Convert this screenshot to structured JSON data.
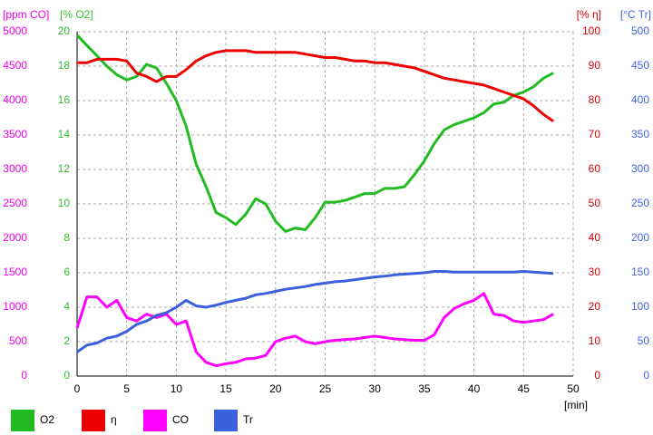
{
  "chart_data": {
    "type": "line",
    "xlabel": "[min]",
    "ylabel": "[% O2]",
    "y2label": "[% η]",
    "y3label": "[ppm CO]",
    "y4label": "[°C Tr]",
    "x": [
      0,
      1,
      2,
      3,
      4,
      5,
      6,
      7,
      8,
      9,
      10,
      11,
      12,
      13,
      14,
      15,
      16,
      17,
      18,
      19,
      20,
      21,
      22,
      23,
      24,
      25,
      26,
      27,
      28,
      29,
      30,
      31,
      32,
      33,
      34,
      35,
      36,
      37,
      38,
      39,
      40,
      41,
      42,
      43,
      44,
      45,
      46,
      47,
      48
    ],
    "xlim": [
      0,
      50
    ],
    "xticks": [
      0,
      5,
      10,
      15,
      20,
      25,
      30,
      35,
      40,
      45,
      50
    ],
    "ylim": [
      0,
      20
    ],
    "yticks": [
      0,
      2,
      4,
      6,
      8,
      10,
      12,
      14,
      16,
      18,
      20
    ],
    "ycolor": "#33bb33",
    "y2lim": [
      0,
      100
    ],
    "y2ticks": [
      0,
      10,
      20,
      30,
      40,
      50,
      60,
      70,
      80,
      90,
      100
    ],
    "y2color": "#dd0000",
    "y3lim": [
      0,
      5000
    ],
    "y3ticks": [
      0,
      500,
      1000,
      1500,
      2000,
      2500,
      3000,
      3500,
      4000,
      4500,
      5000
    ],
    "y3color": "#ee00ee",
    "y4lim": [
      0,
      500
    ],
    "y4ticks": [
      0,
      50,
      100,
      150,
      200,
      250,
      300,
      350,
      400,
      450,
      500
    ],
    "y4color": "#4466dd",
    "grid": true,
    "series": [
      {
        "name": "O2",
        "color": "#22bb22",
        "axis": "y",
        "values": [
          19.8,
          19.2,
          18.6,
          18.0,
          17.5,
          17.2,
          17.4,
          18.1,
          17.9,
          17.0,
          16.0,
          14.5,
          12.3,
          11.0,
          9.5,
          9.2,
          8.8,
          9.4,
          10.3,
          10.0,
          9.0,
          8.4,
          8.6,
          8.5,
          9.2,
          10.1,
          10.1,
          10.2,
          10.4,
          10.6,
          10.6,
          10.9,
          10.9,
          11.0,
          11.7,
          12.5,
          13.5,
          14.3,
          14.6,
          14.8,
          15.0,
          15.3,
          15.8,
          15.9,
          16.3,
          16.5,
          16.8,
          17.3,
          17.6
        ]
      },
      {
        "name": "η",
        "color": "#ee0000",
        "axis": "y2",
        "values": [
          91,
          91,
          92,
          92,
          92,
          91.5,
          88,
          87,
          85.5,
          87,
          87,
          89,
          91.5,
          93,
          94,
          94.5,
          94.5,
          94.5,
          94,
          94,
          94,
          94,
          94,
          93.5,
          93,
          92.5,
          92.5,
          92,
          91.5,
          91.5,
          91,
          91,
          90.5,
          90,
          89.5,
          88.5,
          87.5,
          86.5,
          86,
          85.5,
          85,
          84.5,
          83.5,
          82.5,
          81.5,
          80.5,
          78.5,
          76,
          74
        ]
      },
      {
        "name": "CO",
        "color": "#ff00ff",
        "axis": "y3",
        "values": [
          700,
          1150,
          1150,
          1000,
          1100,
          850,
          800,
          900,
          850,
          900,
          750,
          800,
          350,
          200,
          150,
          180,
          200,
          250,
          260,
          300,
          500,
          550,
          580,
          500,
          470,
          500,
          520,
          530,
          540,
          560,
          580,
          560,
          540,
          530,
          520,
          520,
          600,
          850,
          980,
          1050,
          1100,
          1200,
          900,
          880,
          800,
          780,
          800,
          820,
          900
        ]
      },
      {
        "name": "Tr",
        "color": "#3b5fdd",
        "axis": "y4",
        "values": [
          35,
          45,
          48,
          55,
          58,
          65,
          75,
          80,
          88,
          92,
          100,
          110,
          102,
          100,
          103,
          107,
          110,
          113,
          118,
          120,
          123,
          126,
          128,
          130,
          133,
          135,
          137,
          138,
          140,
          142,
          144,
          145,
          147,
          148,
          149,
          150,
          152,
          152,
          151,
          151,
          151,
          151,
          151,
          151,
          151,
          152,
          151,
          150,
          149
        ]
      }
    ]
  }
}
